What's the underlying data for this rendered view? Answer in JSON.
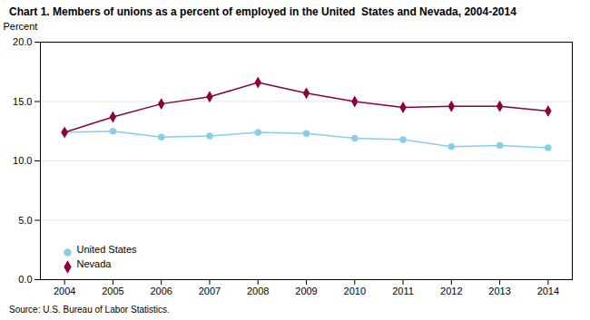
{
  "chart_data": {
    "type": "line",
    "title": "Chart 1. Members of unions as a percent of employed in the United  States and Nevada, 2004-2014",
    "ylabel": "Percent",
    "source": "Source: U.S. Bureau of Labor Statistics.",
    "x": [
      2004,
      2005,
      2006,
      2007,
      2008,
      2009,
      2010,
      2011,
      2012,
      2013,
      2014
    ],
    "series": [
      {
        "name": "United States",
        "color": "#87CEEB",
        "marker": "circle",
        "values": [
          12.4,
          12.5,
          12.0,
          12.1,
          12.4,
          12.3,
          11.9,
          11.8,
          11.2,
          11.3,
          11.1
        ]
      },
      {
        "name": "Nevada",
        "color": "#8B0040",
        "marker": "diamond",
        "values": [
          12.4,
          13.7,
          14.8,
          15.4,
          16.6,
          15.7,
          15.0,
          14.5,
          14.6,
          14.6,
          14.2
        ]
      }
    ],
    "xlim": [
      2003.5,
      2014.5
    ],
    "xticks": [
      2004,
      2005,
      2006,
      2007,
      2008,
      2009,
      2010,
      2011,
      2012,
      2013,
      2014
    ],
    "ylim": [
      0,
      20.0
    ],
    "yticks": [
      {
        "value": 0,
        "label": "0.0"
      },
      {
        "value": 5,
        "label": "5.0"
      },
      {
        "value": 10,
        "label": "10.0"
      },
      {
        "value": 15,
        "label": "15.0"
      },
      {
        "value": 20,
        "label": "20.0"
      }
    ],
    "grid": true,
    "legend": "lower left"
  }
}
